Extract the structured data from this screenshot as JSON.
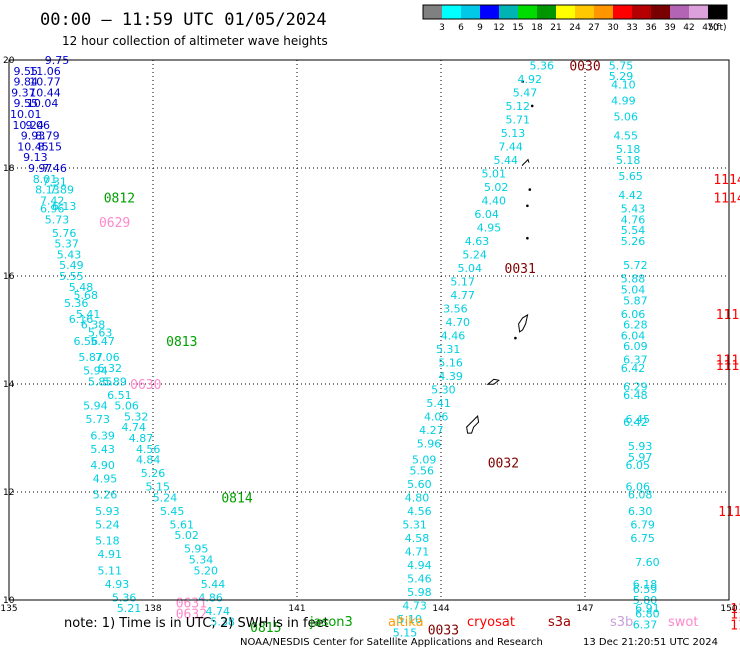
{
  "title": "00:00 – 11:59 UTC 01/05/2024",
  "subtitle": "12 hour collection of altimeter wave heights",
  "note": "note: 1) Time is in UTC; 2) SWH is in feet",
  "credit": "NOAA/NESDIS Center for Satellite Applications and Research",
  "generated": "13 Dec 21:20:51 UTC 2024",
  "colorbar": {
    "unit": "(ft)",
    "labels": [
      "3",
      "6",
      "9",
      "12",
      "15",
      "18",
      "21",
      "24",
      "27",
      "30",
      "33",
      "36",
      "39",
      "42",
      "45",
      "70"
    ],
    "colors": [
      "#808080",
      "#00ffff",
      "#00c8e6",
      "#0000ff",
      "#00b4b4",
      "#00dc00",
      "#009600",
      "#ffff00",
      "#ffc800",
      "#ff9600",
      "#ff0000",
      "#b40000",
      "#780000",
      "#b464b4",
      "#dca0dc",
      "#000000"
    ]
  },
  "missions": [
    {
      "name": "jason3",
      "color": "#00a000"
    },
    {
      "name": "altika",
      "color": "#ff9900"
    },
    {
      "name": "cryosat",
      "color": "#ff0000"
    },
    {
      "name": "s3a",
      "color": "#a00000"
    },
    {
      "name": "s3b",
      "color": "#c8a0dc"
    },
    {
      "name": "swot",
      "color": "#ff88cc"
    }
  ],
  "chart_data": {
    "type": "scatter",
    "xlim": [
      135,
      150
    ],
    "ylim": [
      10,
      20
    ],
    "xticks": [
      135,
      138,
      141,
      144,
      147,
      150
    ],
    "yticks": [
      10,
      12,
      14,
      16,
      18,
      20
    ],
    "grid": true,
    "tracks": [
      {
        "id": "blue",
        "color": "#0000cc",
        "points": [
          [
            136.0,
            20.0,
            "9.75"
          ],
          [
            135.75,
            19.8,
            "11.06"
          ],
          [
            135.35,
            19.8,
            "9.55"
          ],
          [
            135.75,
            19.6,
            "10.77"
          ],
          [
            135.35,
            19.6,
            "9.84"
          ],
          [
            135.3,
            19.4,
            "9.37"
          ],
          [
            135.75,
            19.4,
            "10.44"
          ],
          [
            135.35,
            19.2,
            "9.55"
          ],
          [
            135.7,
            19.2,
            "10.04"
          ],
          [
            135.35,
            19.0,
            "10.01"
          ],
          [
            135.6,
            18.8,
            "9.06"
          ],
          [
            135.4,
            18.8,
            "10.24"
          ],
          [
            135.5,
            18.6,
            "9.93"
          ],
          [
            135.8,
            18.6,
            "8.79"
          ],
          [
            135.5,
            18.4,
            "10.45"
          ],
          [
            135.85,
            18.4,
            "8.15"
          ],
          [
            135.55,
            18.2,
            "9.13"
          ],
          [
            135.65,
            18.0,
            "9.97"
          ],
          [
            135.95,
            18.0,
            "7.46"
          ]
        ]
      },
      {
        "id": "west",
        "color": "#00d0e0",
        "points": [
          [
            135.75,
            17.8,
            "8.01"
          ],
          [
            135.95,
            17.75,
            "7.31"
          ],
          [
            135.8,
            17.6,
            "8.13"
          ],
          [
            136.1,
            17.6,
            "7.89"
          ],
          [
            135.9,
            17.4,
            "7.42"
          ],
          [
            136.15,
            17.3,
            "6.13"
          ],
          [
            135.9,
            17.25,
            "6.96"
          ],
          [
            136.0,
            17.05,
            "5.73"
          ],
          [
            136.15,
            16.8,
            "5.76"
          ],
          [
            136.2,
            16.6,
            "5.37"
          ],
          [
            136.25,
            16.4,
            "5.43"
          ],
          [
            136.3,
            16.2,
            "5.49"
          ],
          [
            136.3,
            16.0,
            "5.55"
          ],
          [
            136.5,
            15.8,
            "5.48"
          ],
          [
            136.6,
            15.65,
            "5.68"
          ],
          [
            136.4,
            15.5,
            "5.36"
          ],
          [
            136.65,
            15.3,
            "5.41"
          ],
          [
            136.5,
            15.2,
            "6.16"
          ],
          [
            136.75,
            15.1,
            "6.38"
          ],
          [
            136.9,
            14.95,
            "5.63"
          ],
          [
            136.6,
            14.8,
            "6.56"
          ],
          [
            136.95,
            14.8,
            "5.47"
          ],
          [
            137.05,
            14.5,
            "7.06"
          ],
          [
            136.7,
            14.5,
            "5.87"
          ],
          [
            137.1,
            14.3,
            "6.32"
          ],
          [
            136.8,
            14.25,
            "5.94"
          ],
          [
            137.2,
            14.05,
            "5.89"
          ],
          [
            136.9,
            14.05,
            "5.85"
          ],
          [
            137.3,
            13.8,
            "6.51"
          ],
          [
            137.45,
            13.6,
            "5.06"
          ],
          [
            136.8,
            13.6,
            "5.94"
          ],
          [
            137.65,
            13.4,
            "5.32"
          ],
          [
            136.85,
            13.35,
            "5.73"
          ],
          [
            137.6,
            13.2,
            "4.74"
          ],
          [
            136.95,
            13.05,
            "6.39"
          ],
          [
            137.75,
            13.0,
            "4.87"
          ],
          [
            136.95,
            12.8,
            "5.43"
          ],
          [
            137.9,
            12.8,
            "4.56"
          ],
          [
            137.9,
            12.6,
            "4.84"
          ],
          [
            136.95,
            12.5,
            "4.90"
          ],
          [
            138.0,
            12.35,
            "5.26"
          ],
          [
            137.0,
            12.25,
            "4.95"
          ],
          [
            138.1,
            12.1,
            "5.15"
          ],
          [
            137.0,
            11.95,
            "5.26"
          ],
          [
            138.25,
            11.9,
            "5.24"
          ],
          [
            137.05,
            11.65,
            "5.93"
          ],
          [
            138.4,
            11.65,
            "5.45"
          ],
          [
            137.05,
            11.4,
            "5.24"
          ],
          [
            138.6,
            11.4,
            "5.61"
          ],
          [
            137.05,
            11.1,
            "5.18"
          ],
          [
            138.7,
            11.2,
            "5.02"
          ],
          [
            137.1,
            10.85,
            "4.91"
          ],
          [
            138.9,
            10.95,
            "5.95"
          ],
          [
            139.0,
            10.75,
            "5.34"
          ],
          [
            137.1,
            10.55,
            "5.11"
          ],
          [
            139.1,
            10.55,
            "5.20"
          ],
          [
            137.25,
            10.3,
            "4.93"
          ],
          [
            139.25,
            10.3,
            "5.44"
          ],
          [
            137.4,
            10.05,
            "5.36"
          ],
          [
            139.2,
            10.05,
            "4.86"
          ],
          [
            137.5,
            9.85,
            "5.21"
          ],
          [
            139.35,
            9.8,
            "4.74"
          ],
          [
            139.45,
            9.6,
            "5.38"
          ]
        ]
      },
      {
        "id": "mid",
        "color": "#00d0e0",
        "points": [
          [
            146.1,
            19.9,
            "5.36"
          ],
          [
            145.85,
            19.65,
            "4.92"
          ],
          [
            145.75,
            19.4,
            "5.47"
          ],
          [
            145.6,
            19.15,
            "5.12"
          ],
          [
            145.6,
            18.9,
            "5.71"
          ],
          [
            145.5,
            18.65,
            "5.13"
          ],
          [
            145.45,
            18.4,
            "7.44"
          ],
          [
            145.35,
            18.15,
            "5.44"
          ],
          [
            145.1,
            17.9,
            "5.01"
          ],
          [
            145.15,
            17.65,
            "5.02"
          ],
          [
            145.1,
            17.4,
            "4.40"
          ],
          [
            144.95,
            17.15,
            "6.04"
          ],
          [
            145.0,
            16.9,
            "4.95"
          ],
          [
            144.75,
            16.65,
            "4.63"
          ],
          [
            144.7,
            16.4,
            "5.24"
          ],
          [
            144.6,
            16.15,
            "5.04"
          ],
          [
            144.45,
            15.9,
            "5.17"
          ],
          [
            144.45,
            15.65,
            "4.77"
          ],
          [
            144.3,
            15.4,
            "3.56"
          ],
          [
            144.35,
            15.15,
            "4.70"
          ],
          [
            144.25,
            14.9,
            "4.46"
          ],
          [
            144.15,
            14.65,
            "5.31"
          ],
          [
            144.2,
            14.4,
            "5.16"
          ],
          [
            144.2,
            14.15,
            "4.39"
          ],
          [
            144.05,
            13.9,
            "5.30"
          ],
          [
            143.95,
            13.65,
            "5.41"
          ],
          [
            143.9,
            13.4,
            "4.06"
          ],
          [
            143.8,
            13.15,
            "4.27"
          ],
          [
            143.75,
            12.9,
            "5.96"
          ],
          [
            143.65,
            12.6,
            "5.09"
          ],
          [
            143.6,
            12.4,
            "5.56"
          ],
          [
            143.55,
            12.15,
            "5.60"
          ],
          [
            143.5,
            11.9,
            "4.80"
          ],
          [
            143.55,
            11.65,
            "4.56"
          ],
          [
            143.45,
            11.4,
            "5.31"
          ],
          [
            143.5,
            11.15,
            "4.58"
          ],
          [
            143.5,
            10.9,
            "4.71"
          ],
          [
            143.55,
            10.65,
            "4.94"
          ],
          [
            143.55,
            10.4,
            "5.46"
          ],
          [
            143.55,
            10.15,
            "5.98"
          ],
          [
            143.45,
            9.9,
            "4.73"
          ],
          [
            143.35,
            9.65,
            "5.10"
          ],
          [
            143.25,
            9.4,
            "5.15"
          ]
        ]
      },
      {
        "id": "east",
        "color": "#00d0e0",
        "points": [
          [
            147.75,
            19.9,
            "5.75"
          ],
          [
            147.75,
            19.7,
            "5.29"
          ],
          [
            147.8,
            19.55,
            "4.10"
          ],
          [
            147.8,
            19.25,
            "4.99"
          ],
          [
            147.85,
            18.95,
            "5.06"
          ],
          [
            147.85,
            18.6,
            "4.55"
          ],
          [
            147.9,
            18.35,
            "5.18"
          ],
          [
            147.9,
            18.15,
            "5.18"
          ],
          [
            147.95,
            17.85,
            "5.65"
          ],
          [
            147.95,
            17.5,
            "4.42"
          ],
          [
            148.0,
            17.25,
            "5.43"
          ],
          [
            148.0,
            17.05,
            "4.76"
          ],
          [
            148.0,
            16.85,
            "5.54"
          ],
          [
            148.0,
            16.65,
            "5.26"
          ],
          [
            148.05,
            16.2,
            "5.72"
          ],
          [
            148.0,
            15.95,
            "5.88"
          ],
          [
            148.0,
            15.75,
            "5.04"
          ],
          [
            148.05,
            15.55,
            "5.87"
          ],
          [
            148.0,
            15.3,
            "6.06"
          ],
          [
            148.05,
            15.1,
            "6.28"
          ],
          [
            148.0,
            14.9,
            "6.04"
          ],
          [
            148.05,
            14.7,
            "6.09"
          ],
          [
            148.05,
            14.45,
            "6.37"
          ],
          [
            148.0,
            14.3,
            "6.42"
          ],
          [
            148.05,
            13.95,
            "6.29"
          ],
          [
            148.05,
            13.8,
            "6.48"
          ],
          [
            148.1,
            13.35,
            "6.45"
          ],
          [
            148.05,
            13.3,
            "6.42"
          ],
          [
            148.15,
            12.85,
            "5.93"
          ],
          [
            148.15,
            12.65,
            "5.97"
          ],
          [
            148.1,
            12.5,
            "6.05"
          ],
          [
            148.1,
            12.1,
            "6.06"
          ],
          [
            148.15,
            11.95,
            "6.08"
          ],
          [
            148.15,
            11.65,
            "6.30"
          ],
          [
            148.2,
            11.4,
            "6.79"
          ],
          [
            148.2,
            11.15,
            "6.75"
          ],
          [
            148.3,
            10.7,
            "7.60"
          ],
          [
            148.25,
            10.3,
            "6.18"
          ],
          [
            148.25,
            10.2,
            "6.59"
          ],
          [
            148.25,
            10.0,
            "5.80"
          ],
          [
            148.3,
            9.85,
            "6.91"
          ],
          [
            148.3,
            9.75,
            "6.80"
          ],
          [
            148.25,
            9.55,
            "6.37"
          ]
        ]
      }
    ],
    "time_tags": [
      {
        "x": 147.0,
        "y": 19.9,
        "label": "0030",
        "color": "#800000"
      },
      {
        "x": 150.0,
        "y": 17.8,
        "label": "1114",
        "color": "#ff0000"
      },
      {
        "x": 150.0,
        "y": 17.45,
        "label": "1114",
        "color": "#ff0000"
      },
      {
        "x": 137.3,
        "y": 17.45,
        "label": "0812",
        "color": "#00a000"
      },
      {
        "x": 137.2,
        "y": 17.0,
        "label": "0629",
        "color": "#ff88cc"
      },
      {
        "x": 145.65,
        "y": 16.15,
        "label": "0031",
        "color": "#800000"
      },
      {
        "x": 150.05,
        "y": 15.3,
        "label": "1113",
        "color": "#ff0000"
      },
      {
        "x": 138.6,
        "y": 14.8,
        "label": "0813",
        "color": "#00a000"
      },
      {
        "x": 150.05,
        "y": 14.45,
        "label": "1113",
        "color": "#ff0000"
      },
      {
        "x": 150.05,
        "y": 14.35,
        "label": "1113",
        "color": "#ff0000"
      },
      {
        "x": 137.85,
        "y": 14.0,
        "label": "0630",
        "color": "#ff88cc"
      },
      {
        "x": 145.3,
        "y": 12.55,
        "label": "0032",
        "color": "#800000"
      },
      {
        "x": 150.1,
        "y": 11.65,
        "label": "1112",
        "color": "#ff0000"
      },
      {
        "x": 139.75,
        "y": 11.9,
        "label": "0814",
        "color": "#00a000"
      },
      {
        "x": 150.35,
        "y": 9.85,
        "label": "1112",
        "color": "#ff0000"
      },
      {
        "x": 150.35,
        "y": 9.75,
        "label": "1112",
        "color": "#ff0000"
      },
      {
        "x": 150.35,
        "y": 9.55,
        "label": "1111",
        "color": "#ff0000"
      },
      {
        "x": 138.8,
        "y": 9.95,
        "label": "0631",
        "color": "#ff88cc"
      },
      {
        "x": 138.8,
        "y": 9.75,
        "label": "0632",
        "color": "#ff88cc"
      },
      {
        "x": 140.35,
        "y": 9.5,
        "label": "0815",
        "color": "#00a000"
      },
      {
        "x": 144.05,
        "y": 9.45,
        "label": "0033",
        "color": "#800000"
      }
    ],
    "islands": [
      {
        "x": 145.7,
        "y": 19.6,
        "kind": "dot"
      },
      {
        "x": 145.9,
        "y": 19.15,
        "kind": "dot"
      },
      {
        "x": 145.75,
        "y": 18.1,
        "kind": "hook"
      },
      {
        "x": 145.85,
        "y": 17.6,
        "kind": "dot"
      },
      {
        "x": 145.8,
        "y": 17.3,
        "kind": "dot"
      },
      {
        "x": 145.8,
        "y": 16.7,
        "kind": "dot"
      },
      {
        "x": 145.7,
        "y": 15.15,
        "kind": "blob"
      },
      {
        "x": 145.55,
        "y": 14.85,
        "kind": "dot"
      },
      {
        "x": 145.1,
        "y": 14.05,
        "kind": "small"
      },
      {
        "x": 144.7,
        "y": 13.35,
        "kind": "guam"
      }
    ]
  }
}
